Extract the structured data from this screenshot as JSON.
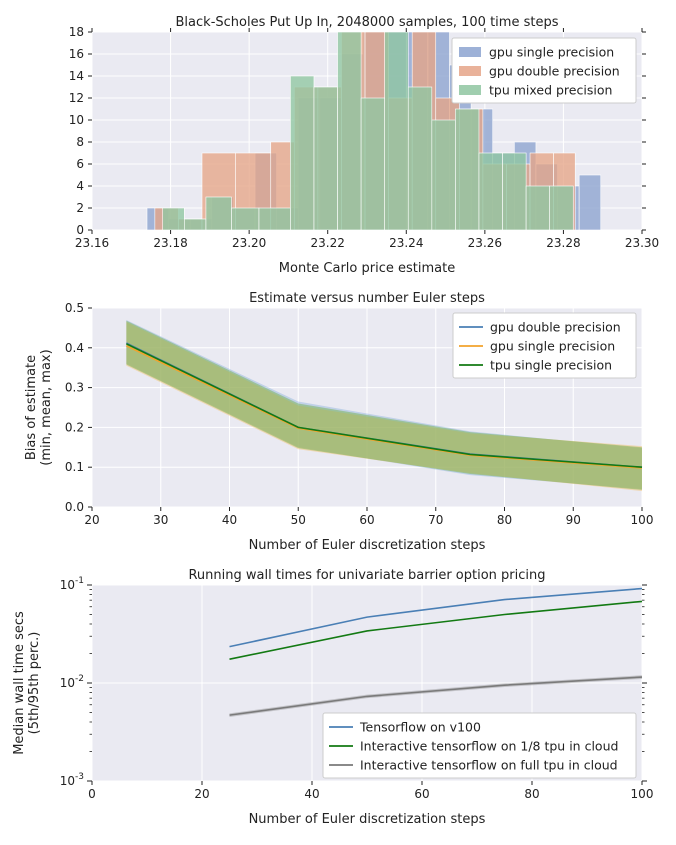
{
  "chart_data": [
    {
      "type": "bar",
      "subtype": "histogram",
      "title": "Black-Scholes Put Up In, 2048000 samples, 100 time steps",
      "xlabel": "Monte Carlo price estimate",
      "ylabel": "",
      "xlim": [
        23.16,
        23.3
      ],
      "ylim": [
        0,
        18
      ],
      "xticks": [
        "23.16",
        "23.18",
        "23.20",
        "23.22",
        "23.24",
        "23.26",
        "23.28",
        "23.30"
      ],
      "yticks": [
        "0",
        "2",
        "4",
        "6",
        "8",
        "10",
        "12",
        "14",
        "16",
        "18"
      ],
      "grid": true,
      "legend_position": "top-right",
      "series": [
        {
          "name": "gpu single precision",
          "color": "#8ca3d0",
          "bins": [
            {
              "x0": 23.174,
              "x1": 23.1795,
              "count": 2
            },
            {
              "x0": 23.1795,
              "x1": 23.185,
              "count": 1
            },
            {
              "x0": 23.185,
              "x1": 23.1905,
              "count": 1
            },
            {
              "x0": 23.1905,
              "x1": 23.196,
              "count": 3
            },
            {
              "x0": 23.196,
              "x1": 23.2015,
              "count": 2
            },
            {
              "x0": 23.2015,
              "x1": 23.207,
              "count": 7
            },
            {
              "x0": 23.207,
              "x1": 23.2125,
              "count": 2
            },
            {
              "x0": 23.2125,
              "x1": 23.218,
              "count": 12
            },
            {
              "x0": 23.218,
              "x1": 23.2235,
              "count": 12
            },
            {
              "x0": 23.2235,
              "x1": 23.229,
              "count": 16
            },
            {
              "x0": 23.229,
              "x1": 23.2345,
              "count": 18
            },
            {
              "x0": 23.2345,
              "x1": 23.24,
              "count": 18
            },
            {
              "x0": 23.24,
              "x1": 23.2455,
              "count": 18
            },
            {
              "x0": 23.2455,
              "x1": 23.251,
              "count": 18
            },
            {
              "x0": 23.251,
              "x1": 23.2565,
              "count": 15
            },
            {
              "x0": 23.2565,
              "x1": 23.262,
              "count": 11
            },
            {
              "x0": 23.262,
              "x1": 23.2675,
              "count": 7
            },
            {
              "x0": 23.2675,
              "x1": 23.273,
              "count": 8
            },
            {
              "x0": 23.273,
              "x1": 23.2785,
              "count": 6
            },
            {
              "x0": 23.2785,
              "x1": 23.284,
              "count": 4
            },
            {
              "x0": 23.284,
              "x1": 23.2895,
              "count": 5
            }
          ]
        },
        {
          "name": "gpu double precision",
          "color": "#e5a588",
          "bins": [
            {
              "x0": 23.176,
              "x1": 23.182,
              "count": 2
            },
            {
              "x0": 23.182,
              "x1": 23.188,
              "count": 1
            },
            {
              "x0": 23.188,
              "x1": 23.1965,
              "count": 7
            },
            {
              "x0": 23.1965,
              "x1": 23.2055,
              "count": 7
            },
            {
              "x0": 23.2055,
              "x1": 23.2115,
              "count": 8
            },
            {
              "x0": 23.2115,
              "x1": 23.2175,
              "count": 13
            },
            {
              "x0": 23.2175,
              "x1": 23.2235,
              "count": 13
            },
            {
              "x0": 23.2235,
              "x1": 23.2295,
              "count": 18
            },
            {
              "x0": 23.2295,
              "x1": 23.2355,
              "count": 18
            },
            {
              "x0": 23.2355,
              "x1": 23.2415,
              "count": 12
            },
            {
              "x0": 23.2415,
              "x1": 23.2475,
              "count": 18
            },
            {
              "x0": 23.2475,
              "x1": 23.2535,
              "count": 12
            },
            {
              "x0": 23.2535,
              "x1": 23.2595,
              "count": 11
            },
            {
              "x0": 23.2595,
              "x1": 23.2655,
              "count": 6
            },
            {
              "x0": 23.2655,
              "x1": 23.2715,
              "count": 6
            },
            {
              "x0": 23.2715,
              "x1": 23.2775,
              "count": 7
            },
            {
              "x0": 23.2775,
              "x1": 23.283,
              "count": 7
            }
          ]
        },
        {
          "name": "tpu mixed precision",
          "color": "#8fc6a1",
          "bins": [
            {
              "x0": 23.178,
              "x1": 23.1835,
              "count": 2
            },
            {
              "x0": 23.1835,
              "x1": 23.189,
              "count": 1
            },
            {
              "x0": 23.189,
              "x1": 23.1955,
              "count": 3
            },
            {
              "x0": 23.1955,
              "x1": 23.2025,
              "count": 2
            },
            {
              "x0": 23.2025,
              "x1": 23.2105,
              "count": 2
            },
            {
              "x0": 23.2105,
              "x1": 23.2165,
              "count": 14
            },
            {
              "x0": 23.2165,
              "x1": 23.2225,
              "count": 13
            },
            {
              "x0": 23.2225,
              "x1": 23.2285,
              "count": 18
            },
            {
              "x0": 23.2285,
              "x1": 23.2345,
              "count": 12
            },
            {
              "x0": 23.2345,
              "x1": 23.2405,
              "count": 18
            },
            {
              "x0": 23.2405,
              "x1": 23.2465,
              "count": 13
            },
            {
              "x0": 23.2465,
              "x1": 23.2525,
              "count": 10
            },
            {
              "x0": 23.2525,
              "x1": 23.2585,
              "count": 11
            },
            {
              "x0": 23.2585,
              "x1": 23.2645,
              "count": 7
            },
            {
              "x0": 23.2645,
              "x1": 23.2705,
              "count": 7
            },
            {
              "x0": 23.2705,
              "x1": 23.2765,
              "count": 4
            },
            {
              "x0": 23.2765,
              "x1": 23.2825,
              "count": 4
            }
          ]
        }
      ]
    },
    {
      "type": "line",
      "subtype": "line with min-max band",
      "title": "Estimate versus number Euler steps",
      "xlabel": "Number of Euler discretization steps",
      "ylabel": "Bias of estimate\n(min, mean, max)",
      "xlim": [
        20,
        100
      ],
      "ylim": [
        0.0,
        0.5
      ],
      "xticks": [
        "20",
        "30",
        "40",
        "50",
        "60",
        "70",
        "80",
        "90",
        "100"
      ],
      "yticks": [
        "0.0",
        "0.1",
        "0.2",
        "0.3",
        "0.4",
        "0.5"
      ],
      "grid": true,
      "legend_position": "top-right",
      "x": [
        25,
        50,
        75,
        100
      ],
      "series": [
        {
          "name": "gpu double precision",
          "color": "#4a7fb5",
          "band_color": "#8eb4dc",
          "mean": [
            0.412,
            0.2,
            0.133,
            0.1
          ],
          "min": [
            0.36,
            0.15,
            0.08,
            0.045
          ],
          "max": [
            0.47,
            0.265,
            0.19,
            0.148
          ]
        },
        {
          "name": "gpu single precision",
          "color": "#f2a32b",
          "band_color": "#f5c06a",
          "mean": [
            0.405,
            0.198,
            0.13,
            0.098
          ],
          "min": [
            0.355,
            0.145,
            0.085,
            0.04
          ],
          "max": [
            0.465,
            0.255,
            0.185,
            0.153
          ]
        },
        {
          "name": "tpu single precision",
          "color": "#137a13",
          "band_color": "#6fae3f",
          "mean": [
            0.41,
            0.2,
            0.132,
            0.1
          ],
          "min": [
            0.358,
            0.148,
            0.083,
            0.043
          ],
          "max": [
            0.468,
            0.26,
            0.188,
            0.15
          ]
        }
      ]
    },
    {
      "type": "line",
      "subtype": "log-scale line",
      "title": "Running wall times for univariate barrier option pricing",
      "xlabel": "Number of Euler discretization steps",
      "ylabel": "Median wall time secs\n(5th/95th perc.)",
      "xlim": [
        0,
        100
      ],
      "ylim": [
        0.001,
        0.1
      ],
      "yscale": "log",
      "xticks": [
        "0",
        "20",
        "40",
        "60",
        "80",
        "100"
      ],
      "yticks": [
        "10-3",
        "10-2",
        "10-1"
      ],
      "grid": true,
      "legend_position": "bottom-right",
      "x": [
        25,
        50,
        75,
        100
      ],
      "series": [
        {
          "name": "Tensorflow on v100",
          "color": "#4a7fb5",
          "values": [
            0.0235,
            0.047,
            0.071,
            0.092
          ]
        },
        {
          "name": "Interactive tensorflow on 1/8 tpu in cloud",
          "color": "#137a13",
          "values": [
            0.0175,
            0.034,
            0.05,
            0.068
          ]
        },
        {
          "name": "Interactive tensorflow on full tpu in cloud",
          "color": "#7a7a7a",
          "values": [
            0.0047,
            0.0073,
            0.0095,
            0.0115
          ],
          "band_low": [
            0.0045,
            0.007,
            0.0091,
            0.011
          ],
          "band_high": [
            0.0049,
            0.0076,
            0.0099,
            0.012
          ]
        }
      ]
    }
  ]
}
